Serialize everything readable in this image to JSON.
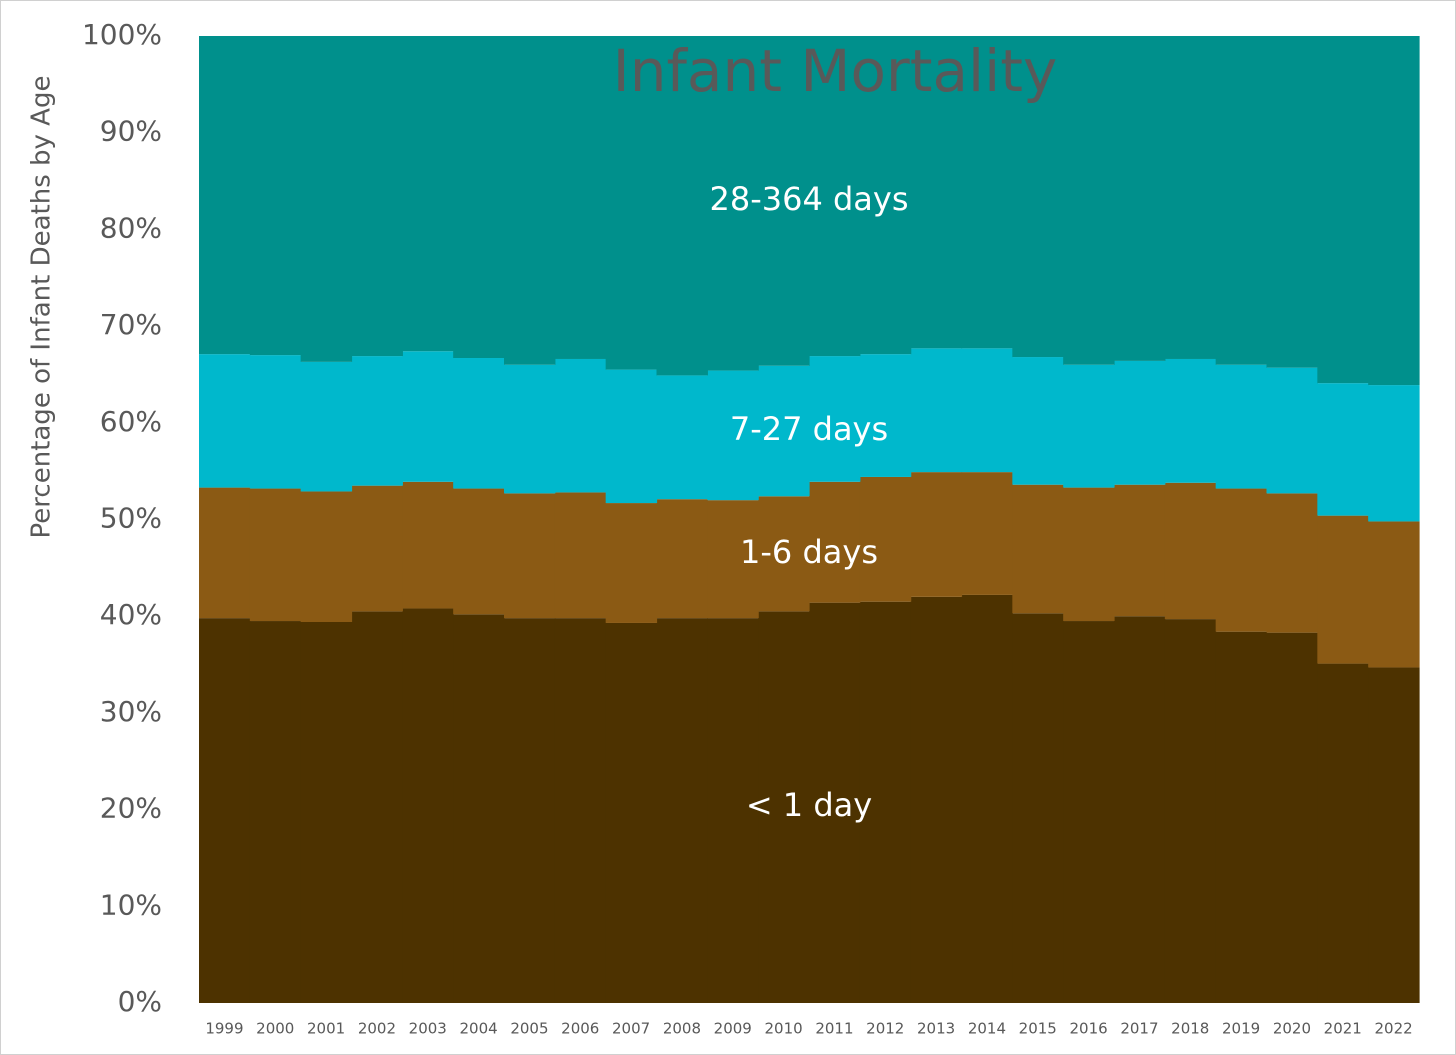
{
  "chart_data": {
    "type": "stacked_bar_100",
    "title": "Infant Mortality",
    "y_label": "Percentage of Infant Deaths by Age",
    "categories": [
      "1999",
      "2000",
      "2001",
      "2002",
      "2003",
      "2004",
      "2005",
      "2006",
      "2007",
      "2008",
      "2009",
      "2010",
      "2011",
      "2012",
      "2013",
      "2014",
      "2015",
      "2016",
      "2017",
      "2018",
      "2019",
      "2020",
      "2021",
      "2022"
    ],
    "series": [
      {
        "name": "< 1 day",
        "color": "#4d3200",
        "values": [
          39.8,
          39.5,
          39.4,
          40.5,
          40.8,
          40.2,
          39.8,
          39.8,
          39.3,
          39.8,
          39.8,
          40.5,
          41.4,
          41.5,
          42.0,
          42.2,
          40.3,
          39.5,
          40.0,
          39.7,
          38.4,
          38.3,
          35.1,
          34.7
        ]
      },
      {
        "name": "1-6 days",
        "color": "#8b5a14",
        "values": [
          13.5,
          13.7,
          13.5,
          13.0,
          13.1,
          13.0,
          12.9,
          13.0,
          12.4,
          12.3,
          12.2,
          11.9,
          12.5,
          12.9,
          12.9,
          12.7,
          13.3,
          13.8,
          13.6,
          14.1,
          14.8,
          14.4,
          15.3,
          15.1
        ]
      },
      {
        "name": "7-27 days",
        "color": "#00b8cc",
        "values": [
          13.8,
          13.8,
          13.4,
          13.4,
          13.5,
          13.5,
          13.3,
          13.8,
          13.8,
          12.8,
          13.4,
          13.5,
          13.0,
          12.7,
          12.8,
          12.8,
          13.2,
          12.7,
          12.8,
          12.8,
          12.8,
          13.0,
          13.7,
          14.1
        ]
      },
      {
        "name": "28-364 days",
        "color": "#00908c",
        "values": [
          32.9,
          33.0,
          33.7,
          33.1,
          32.6,
          33.3,
          34.0,
          33.4,
          34.5,
          35.1,
          34.6,
          34.1,
          33.1,
          32.9,
          32.3,
          32.3,
          33.2,
          34.0,
          33.6,
          33.4,
          34.0,
          34.3,
          35.9,
          36.1
        ]
      }
    ],
    "ylim": [
      0,
      100
    ],
    "yticks": [
      {
        "value": 0,
        "label": "0%"
      },
      {
        "value": 10,
        "label": "10%"
      },
      {
        "value": 20,
        "label": "20%"
      },
      {
        "value": 30,
        "label": "30%"
      },
      {
        "value": 40,
        "label": "40%"
      },
      {
        "value": 50,
        "label": "50%"
      },
      {
        "value": 60,
        "label": "60%"
      },
      {
        "value": 70,
        "label": "70%"
      },
      {
        "value": 80,
        "label": "80%"
      },
      {
        "value": 90,
        "label": "90%"
      },
      {
        "value": 100,
        "label": "100%"
      }
    ],
    "grid": false
  }
}
